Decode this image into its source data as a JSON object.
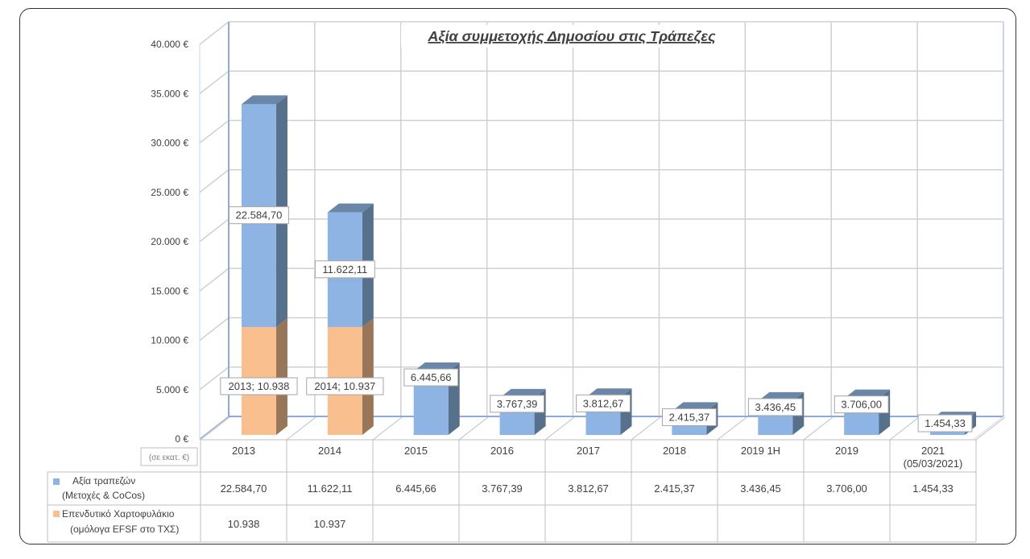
{
  "chart_data": {
    "type": "bar",
    "stacked": true,
    "title": "Αξία συμμετοχής Δημοσίου στις Τράπεζες",
    "unit_note": "(σε εκατ. €)",
    "y_ticks": [
      "0 €",
      "5.000 €",
      "10.000 €",
      "15.000 €",
      "20.000 €",
      "25.000 €",
      "30.000 €",
      "35.000 €",
      "40.000 €"
    ],
    "ylim": [
      0,
      40000
    ],
    "grid": true,
    "categories": [
      "2013",
      "2014",
      "2015",
      "2016",
      "2017",
      "2018",
      "2019 1H",
      "2019",
      "2021"
    ],
    "category_sublabels": [
      "",
      "",
      "",
      "",
      "",
      "",
      "",
      "",
      "(05/03/2021)"
    ],
    "series": [
      {
        "name": "Επενδυτικό Χαρτοφυλάκιο",
        "name_line2": "(ομόλογα EFSF στο ΤΧΣ)",
        "color": "#F9BF8F",
        "values": [
          10938,
          10937,
          null,
          null,
          null,
          null,
          null,
          null,
          null
        ],
        "data_labels": [
          "2013; 10.938",
          "2014; 10.937",
          "",
          "",
          "",
          "",
          "",
          "",
          ""
        ],
        "table_values": [
          "10.938",
          "10.937",
          "",
          "",
          "",
          "",
          "",
          "",
          ""
        ]
      },
      {
        "name": "Αξία τραπεζών",
        "name_line2": "(Μετοχές & CoCos)",
        "color": "#8DB4E2",
        "values": [
          22584.7,
          11622.11,
          6445.66,
          3767.39,
          3812.67,
          2415.37,
          3436.45,
          3706.0,
          1454.33
        ],
        "data_labels": [
          "22.584,70",
          "11.622,11",
          "6.445,66",
          "3.767,39",
          "3.812,67",
          "2.415,37",
          "3.436,45",
          "3.706,00",
          "1.454,33"
        ],
        "table_values": [
          "22.584,70",
          "11.622,11",
          "6.445,66",
          "3.767,39",
          "3.812,67",
          "2.415,37",
          "3.436,45",
          "3.706,00",
          "1.454,33"
        ]
      }
    ]
  }
}
